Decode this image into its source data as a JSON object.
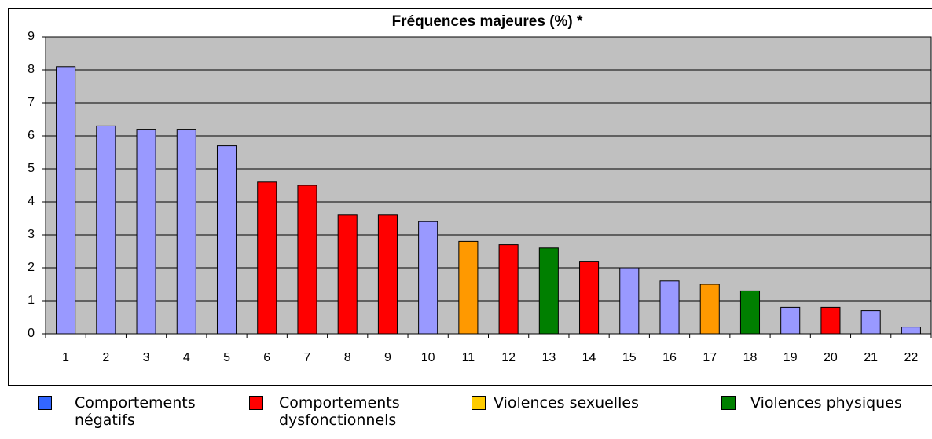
{
  "chart_data": {
    "type": "bar",
    "title": "Fréquences majeures (%) *",
    "categories": [
      "1",
      "2",
      "3",
      "4",
      "5",
      "6",
      "7",
      "8",
      "9",
      "10",
      "11",
      "12",
      "13",
      "14",
      "15",
      "16",
      "17",
      "18",
      "19",
      "20",
      "21",
      "22"
    ],
    "values": [
      8.1,
      6.3,
      6.2,
      6.2,
      5.7,
      4.6,
      4.5,
      3.6,
      3.6,
      3.4,
      2.8,
      2.7,
      2.6,
      2.2,
      2.0,
      1.6,
      1.5,
      1.3,
      0.8,
      0.8,
      0.7,
      0.2
    ],
    "colors": [
      "#9999ff",
      "#9999ff",
      "#9999ff",
      "#9999ff",
      "#9999ff",
      "#ff0000",
      "#ff0000",
      "#ff0000",
      "#ff0000",
      "#9999ff",
      "#ff9900",
      "#ff0000",
      "#007f00",
      "#ff0000",
      "#9999ff",
      "#9999ff",
      "#ff9900",
      "#007f00",
      "#9999ff",
      "#ff0000",
      "#9999ff",
      "#9999ff"
    ],
    "ylim": [
      0,
      9
    ],
    "yticks": [
      0,
      1,
      2,
      3,
      4,
      5,
      6,
      7,
      8,
      9
    ],
    "grid": true,
    "legend": [
      {
        "name": "Comportements négatifs",
        "color": "#3366ff"
      },
      {
        "name": "Comportements dysfonctionnels",
        "color": "#ff0000"
      },
      {
        "name": "Violences sexuelles",
        "color": "#ffcc00"
      },
      {
        "name": "Violences physiques",
        "color": "#008000"
      }
    ]
  }
}
